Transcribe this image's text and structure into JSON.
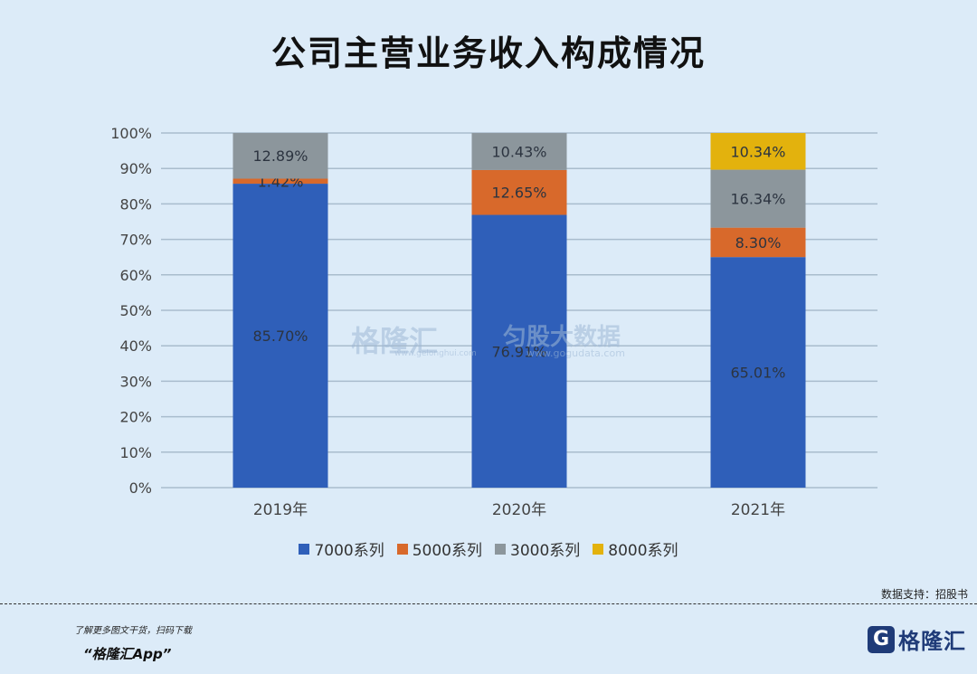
{
  "title": "公司主营业务收入构成情况",
  "chart_data": {
    "type": "stacked-bar",
    "categories": [
      "2019年",
      "2020年",
      "2021年"
    ],
    "series": [
      {
        "name": "7000系列",
        "color": "#2f5fb9",
        "values": [
          85.7,
          76.91,
          65.01
        ],
        "labels": [
          "85.70%",
          "76.91%",
          "65.01%"
        ]
      },
      {
        "name": "5000系列",
        "color": "#d8692b",
        "values": [
          1.42,
          12.65,
          8.3
        ],
        "labels": [
          "1.42%",
          "12.65%",
          "8.30%"
        ]
      },
      {
        "name": "3000系列",
        "color": "#8c969c",
        "values": [
          12.89,
          10.43,
          16.34
        ],
        "labels": [
          "12.89%",
          "10.43%",
          "16.34%"
        ]
      },
      {
        "name": "8000系列",
        "color": "#e3b20d",
        "values": [
          0,
          0,
          10.34
        ],
        "labels": [
          "",
          "",
          "10.34%"
        ]
      }
    ],
    "ylim": [
      0,
      100
    ],
    "yticks": [
      "0%",
      "10%",
      "20%",
      "30%",
      "40%",
      "50%",
      "60%",
      "70%",
      "80%",
      "90%",
      "100%"
    ],
    "legend": "bottom"
  },
  "source": "数据支持：招股书",
  "watermark": {
    "brand_cn": "格隆汇",
    "brand_url": "www.gelonghui.com",
    "data_cn": "匀股大数据",
    "data_url": "www.gogudata.com"
  },
  "footer": {
    "tip": "了解更多图文干货，扫码下载",
    "app": "“格隆汇App”",
    "logo_letter": "G",
    "logo_name": "格隆汇"
  }
}
